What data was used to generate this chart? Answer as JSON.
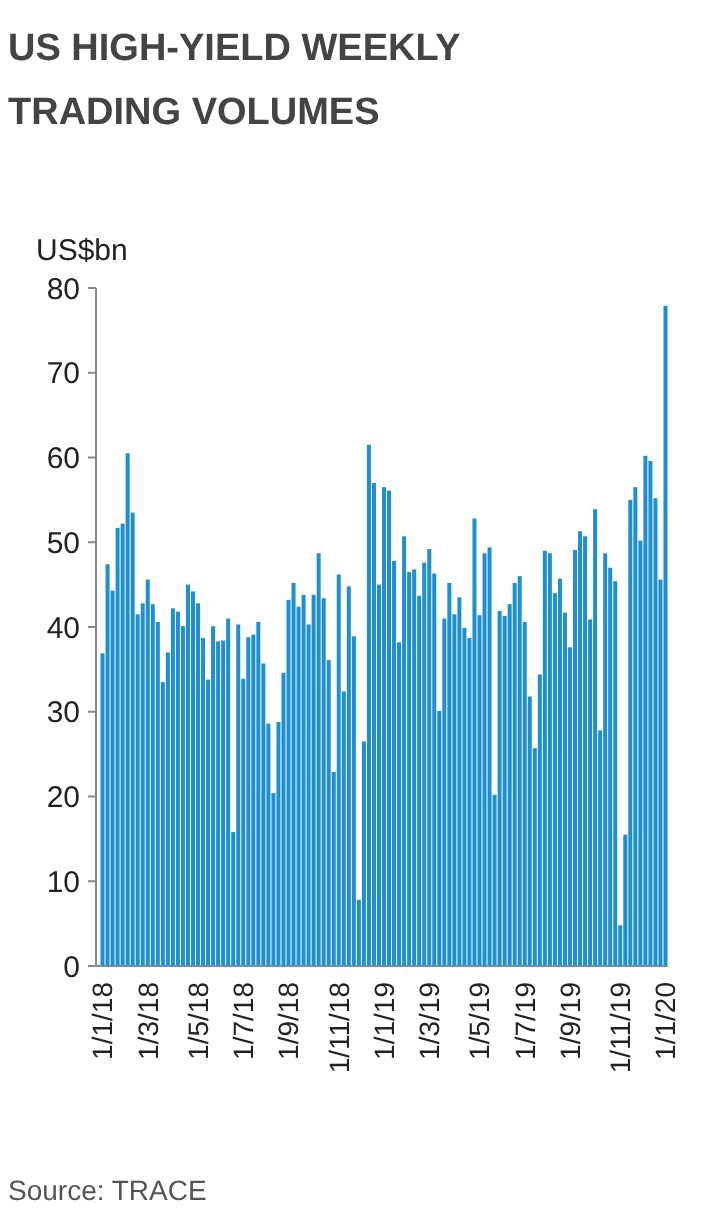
{
  "chart_data": {
    "type": "bar",
    "title": "US HIGH-YIELD WEEKLY TRADING VOLUMES",
    "ylabel": "US$bn",
    "categories": [
      "1/1/18",
      null,
      null,
      null,
      null,
      null,
      null,
      null,
      null,
      "1/3/18",
      null,
      null,
      null,
      null,
      null,
      null,
      null,
      null,
      null,
      "1/5/18",
      null,
      null,
      null,
      null,
      null,
      null,
      null,
      null,
      "1/7/18",
      null,
      null,
      null,
      null,
      null,
      null,
      null,
      null,
      "1/9/18",
      null,
      null,
      null,
      null,
      null,
      null,
      null,
      null,
      null,
      "1/11/18",
      null,
      null,
      null,
      null,
      null,
      null,
      null,
      null,
      "1/1/19",
      null,
      null,
      null,
      null,
      null,
      null,
      null,
      null,
      "1/3/19",
      null,
      null,
      null,
      null,
      null,
      null,
      null,
      null,
      null,
      "1/5/19",
      null,
      null,
      null,
      null,
      null,
      null,
      null,
      null,
      "1/7/19",
      null,
      null,
      null,
      null,
      null,
      null,
      null,
      null,
      "1/9/19",
      null,
      null,
      null,
      null,
      null,
      null,
      null,
      null,
      null,
      "1/11/19",
      null,
      null,
      null,
      null,
      null,
      null,
      null,
      null,
      "1/1/20"
    ],
    "values": [
      36.9,
      47.4,
      44.3,
      51.7,
      52.2,
      60.5,
      53.5,
      41.5,
      42.8,
      45.6,
      42.7,
      40.6,
      33.5,
      37,
      42.2,
      41.8,
      40.1,
      45,
      44.2,
      42.8,
      38.7,
      33.8,
      40.1,
      38.3,
      38.4,
      41,
      15.8,
      40.3,
      33.9,
      38.8,
      39.1,
      40.6,
      35.7,
      28.6,
      20.4,
      28.8,
      34.6,
      43.2,
      45.2,
      42.4,
      43.8,
      40.3,
      43.8,
      48.7,
      43.4,
      36.1,
      22.9,
      46.2,
      32.4,
      44.8,
      38.9,
      7.8,
      26.5,
      61.5,
      57,
      45,
      56.5,
      56.1,
      47.8,
      38.2,
      50.7,
      46.5,
      46.8,
      43.7,
      47.6,
      49.2,
      46.3,
      30.1,
      41,
      45.2,
      41.5,
      43.5,
      39.9,
      38.7,
      52.8,
      41.4,
      48.7,
      49.4,
      20.2,
      41.9,
      41.3,
      42.7,
      45.2,
      46,
      40.6,
      31.8,
      25.7,
      34.4,
      49,
      48.7,
      44,
      45.7,
      41.7,
      37.6,
      49.1,
      51.3,
      50.7,
      40.9,
      53.9,
      27.8,
      48.7,
      47,
      45.4,
      4.8,
      15.5,
      55,
      56.5,
      50.2,
      60.2,
      59.6,
      55.2,
      45.6,
      77.9
    ],
    "color": "#1e8fd2",
    "ylim": [
      0,
      80
    ],
    "yticks": [
      0,
      10,
      20,
      30,
      40,
      50,
      60,
      70,
      80
    ],
    "grid": false,
    "annotations": [
      "Source: TRACE"
    ]
  }
}
